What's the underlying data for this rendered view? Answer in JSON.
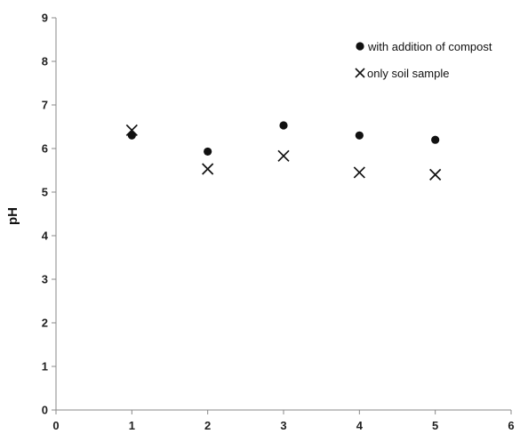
{
  "chart_data": {
    "type": "scatter",
    "title": "",
    "xlabel": "",
    "ylabel": "pH",
    "xlim": [
      0,
      6
    ],
    "ylim": [
      0,
      9
    ],
    "x_ticks": [
      "0",
      "1",
      "2",
      "3",
      "4",
      "5",
      "6"
    ],
    "y_ticks": [
      "0",
      "1",
      "2",
      "3",
      "4",
      "5",
      "6",
      "7",
      "8",
      "9"
    ],
    "grid": false,
    "legend_position": "top-right",
    "series": [
      {
        "name": "with addition of compost",
        "marker": "circle",
        "color": "#111111",
        "x": [
          1,
          2,
          3,
          4,
          5
        ],
        "y": [
          6.3,
          5.93,
          6.53,
          6.3,
          6.2
        ]
      },
      {
        "name": "only soil sample",
        "marker": "x",
        "color": "#111111",
        "x": [
          1,
          2,
          3,
          4,
          5
        ],
        "y": [
          6.42,
          5.53,
          5.83,
          5.45,
          5.4
        ]
      }
    ]
  }
}
